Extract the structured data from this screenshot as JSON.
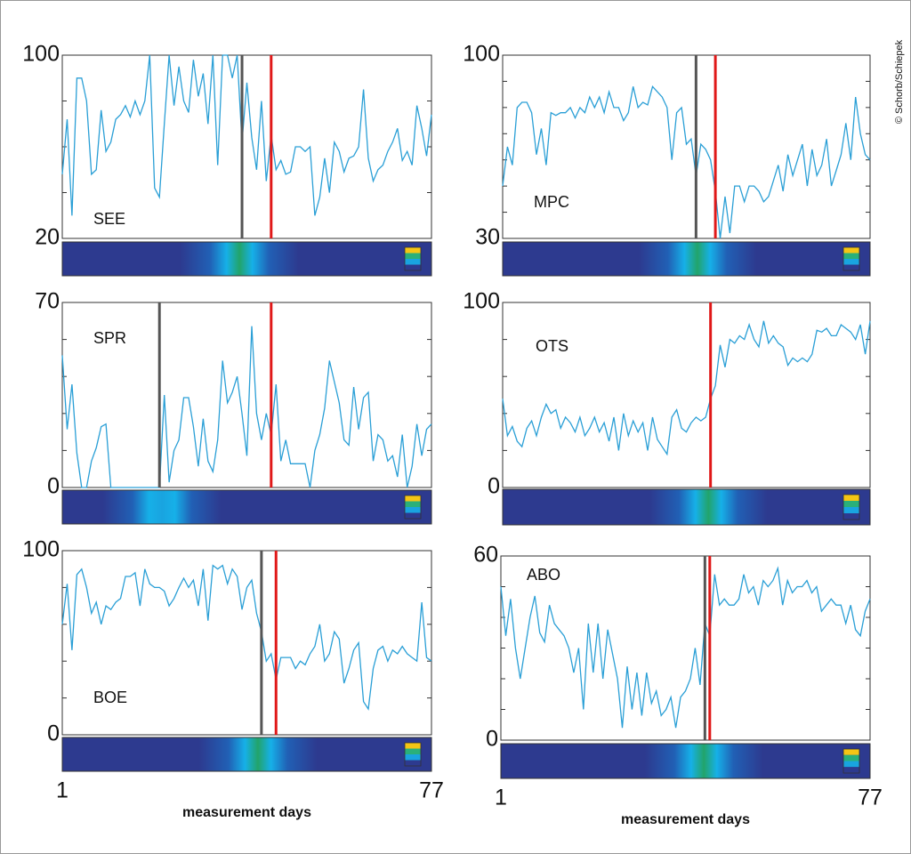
{
  "credit": "© Schorb/Schiepek",
  "chart_data": [
    {
      "type": "line",
      "label": "SEE",
      "color": "#2a9fd6",
      "ylim": [
        20,
        100
      ],
      "yticks": [
        20,
        100
      ],
      "yminor": [
        40,
        60,
        80
      ],
      "xlim": [
        1,
        77
      ],
      "x": [
        1,
        2,
        3,
        4,
        5,
        6,
        7,
        8,
        9,
        10,
        11,
        12,
        13,
        14,
        15,
        16,
        17,
        18,
        19,
        20,
        21,
        22,
        23,
        24,
        25,
        26,
        27,
        28,
        29,
        30,
        31,
        32,
        33,
        34,
        35,
        36,
        37,
        38,
        39,
        40,
        41,
        42,
        43,
        44,
        45,
        46,
        47,
        48,
        49,
        50,
        51,
        52,
        53,
        54,
        55,
        56,
        57,
        58,
        59,
        60,
        61,
        62,
        63,
        64,
        65,
        66,
        67,
        68,
        69,
        70,
        71,
        72,
        73,
        74,
        75,
        76,
        77
      ],
      "values": [
        48,
        72,
        30,
        90,
        90,
        80,
        48,
        50,
        76,
        58,
        62,
        72,
        74,
        78,
        73,
        80,
        74,
        80,
        100,
        42,
        38,
        70,
        100,
        78,
        95,
        80,
        75,
        98,
        82,
        92,
        70,
        100,
        52,
        100,
        100,
        90,
        100,
        62,
        88,
        64,
        50,
        80,
        45,
        65,
        50,
        54,
        48,
        49,
        60,
        60,
        58,
        60,
        30,
        38,
        55,
        40,
        62,
        58,
        49,
        55,
        56,
        60,
        85,
        55,
        45,
        50,
        52,
        58,
        62,
        68,
        54,
        58,
        52,
        78,
        68,
        56,
        74
      ],
      "markers": [
        {
          "x": 38,
          "color": "#555555"
        },
        {
          "x": 44,
          "color": "#e01818"
        }
      ]
    },
    {
      "type": "line",
      "label": "MPC",
      "color": "#2a9fd6",
      "ylim": [
        30,
        100
      ],
      "yticks": [
        30,
        100
      ],
      "yminor": [
        40,
        50,
        60,
        70,
        80,
        90
      ],
      "xlim": [
        1,
        77
      ],
      "x": [
        1,
        2,
        3,
        4,
        5,
        6,
        7,
        8,
        9,
        10,
        11,
        12,
        13,
        14,
        15,
        16,
        17,
        18,
        19,
        20,
        21,
        22,
        23,
        24,
        25,
        26,
        27,
        28,
        29,
        30,
        31,
        32,
        33,
        34,
        35,
        36,
        37,
        38,
        39,
        40,
        41,
        42,
        43,
        44,
        45,
        46,
        47,
        48,
        49,
        50,
        51,
        52,
        53,
        54,
        55,
        56,
        57,
        58,
        59,
        60,
        61,
        62,
        63,
        64,
        65,
        66,
        67,
        68,
        69,
        70,
        71,
        72,
        73,
        74,
        75,
        76,
        77
      ],
      "values": [
        50,
        65,
        58,
        80,
        82,
        82,
        78,
        62,
        72,
        58,
        78,
        77,
        78,
        78,
        80,
        76,
        80,
        78,
        84,
        80,
        84,
        78,
        86,
        80,
        80,
        75,
        78,
        88,
        80,
        82,
        81,
        88,
        86,
        84,
        80,
        60,
        78,
        80,
        66,
        68,
        54,
        66,
        64,
        60,
        48,
        30,
        46,
        32,
        50,
        50,
        44,
        50,
        50,
        48,
        44,
        46,
        52,
        58,
        48,
        62,
        54,
        60,
        66,
        50,
        64,
        54,
        58,
        68,
        50,
        56,
        62,
        74,
        60,
        84,
        70,
        62,
        60
      ],
      "markers": [
        {
          "x": 41,
          "color": "#555555"
        },
        {
          "x": 45,
          "color": "#e01818"
        }
      ]
    },
    {
      "type": "line",
      "label": "SPR",
      "color": "#2a9fd6",
      "ylim": [
        0,
        70
      ],
      "yticks": [
        0,
        70
      ],
      "yminor": [
        14,
        28,
        42,
        56
      ],
      "xlim": [
        1,
        77
      ],
      "x": [
        1,
        2,
        3,
        4,
        5,
        6,
        7,
        8,
        9,
        10,
        11,
        12,
        13,
        14,
        15,
        16,
        17,
        18,
        19,
        20,
        21,
        22,
        23,
        24,
        25,
        26,
        27,
        28,
        29,
        30,
        31,
        32,
        33,
        34,
        35,
        36,
        37,
        38,
        39,
        40,
        41,
        42,
        43,
        44,
        45,
        46,
        47,
        48,
        49,
        50,
        51,
        52,
        53,
        54,
        55,
        56,
        57,
        58,
        59,
        60,
        61,
        62,
        63,
        64,
        65,
        66,
        67,
        68,
        69,
        70,
        71,
        72,
        73,
        74,
        75,
        76,
        77
      ],
      "values": [
        50,
        22,
        39,
        13,
        0,
        0,
        10,
        15,
        23,
        24,
        0,
        0,
        0,
        0,
        0,
        0,
        0,
        0,
        0,
        0,
        0,
        35,
        2,
        14,
        18,
        34,
        34,
        23,
        8,
        26,
        10,
        6,
        18,
        48,
        32,
        36,
        42,
        28,
        12,
        61,
        28,
        18,
        28,
        20,
        39,
        10,
        18,
        9,
        9,
        9,
        9,
        0,
        14,
        20,
        30,
        48,
        40,
        32,
        18,
        16,
        38,
        22,
        34,
        36,
        10,
        20,
        18,
        10,
        12,
        4,
        20,
        0,
        8,
        24,
        12,
        22,
        24
      ],
      "markers": [
        {
          "x": 21,
          "color": "#555555"
        },
        {
          "x": 44,
          "color": "#e01818"
        }
      ]
    },
    {
      "type": "line",
      "label": "OTS",
      "color": "#2a9fd6",
      "ylim": [
        0,
        100
      ],
      "yticks": [
        0,
        100
      ],
      "yminor": [
        20,
        40,
        60,
        80
      ],
      "xlim": [
        1,
        77
      ],
      "x": [
        1,
        2,
        3,
        4,
        5,
        6,
        7,
        8,
        9,
        10,
        11,
        12,
        13,
        14,
        15,
        16,
        17,
        18,
        19,
        20,
        21,
        22,
        23,
        24,
        25,
        26,
        27,
        28,
        29,
        30,
        31,
        32,
        33,
        34,
        35,
        36,
        37,
        38,
        39,
        40,
        41,
        42,
        43,
        44,
        45,
        46,
        47,
        48,
        49,
        50,
        51,
        52,
        53,
        54,
        55,
        56,
        57,
        58,
        59,
        60,
        61,
        62,
        63,
        64,
        65,
        66,
        67,
        68,
        69,
        70,
        71,
        72,
        73,
        74,
        75,
        76,
        77
      ],
      "values": [
        48,
        28,
        33,
        25,
        22,
        32,
        36,
        28,
        38,
        45,
        40,
        42,
        32,
        38,
        35,
        30,
        38,
        28,
        32,
        38,
        30,
        35,
        25,
        38,
        20,
        40,
        28,
        36,
        30,
        35,
        20,
        38,
        26,
        22,
        18,
        38,
        42,
        32,
        30,
        35,
        38,
        36,
        38,
        48,
        55,
        77,
        65,
        80,
        78,
        82,
        80,
        88,
        80,
        76,
        90,
        78,
        82,
        78,
        76,
        66,
        70,
        68,
        70,
        68,
        72,
        85,
        84,
        86,
        82,
        82,
        88,
        86,
        84,
        80,
        88,
        72,
        90
      ],
      "markers": [
        {
          "x": 44,
          "color": "#e01818"
        }
      ]
    },
    {
      "type": "line",
      "label": "BOE",
      "color": "#2a9fd6",
      "ylim": [
        0,
        100
      ],
      "yticks": [
        0,
        100
      ],
      "yminor": [
        20,
        40,
        60,
        80
      ],
      "xlim": [
        1,
        77
      ],
      "xticks": [
        1,
        77
      ],
      "xlabel": "measurement days",
      "x": [
        1,
        2,
        3,
        4,
        5,
        6,
        7,
        8,
        9,
        10,
        11,
        12,
        13,
        14,
        15,
        16,
        17,
        18,
        19,
        20,
        21,
        22,
        23,
        24,
        25,
        26,
        27,
        28,
        29,
        30,
        31,
        32,
        33,
        34,
        35,
        36,
        37,
        38,
        39,
        40,
        41,
        42,
        43,
        44,
        45,
        46,
        47,
        48,
        49,
        50,
        51,
        52,
        53,
        54,
        55,
        56,
        57,
        58,
        59,
        60,
        61,
        62,
        63,
        64,
        65,
        66,
        67,
        68,
        69,
        70,
        71,
        72,
        73,
        74,
        75,
        76,
        77
      ],
      "values": [
        60,
        82,
        46,
        87,
        90,
        80,
        66,
        72,
        60,
        70,
        68,
        72,
        74,
        86,
        86,
        88,
        70,
        90,
        82,
        80,
        80,
        78,
        70,
        74,
        80,
        85,
        80,
        84,
        70,
        90,
        62,
        92,
        90,
        92,
        82,
        90,
        86,
        68,
        80,
        84,
        66,
        56,
        40,
        44,
        30,
        42,
        42,
        42,
        36,
        40,
        38,
        44,
        48,
        60,
        40,
        44,
        56,
        52,
        28,
        36,
        46,
        50,
        18,
        14,
        36,
        46,
        48,
        40,
        46,
        44,
        48,
        44,
        42,
        40,
        72,
        42,
        40
      ],
      "markers": [
        {
          "x": 42,
          "color": "#555555"
        },
        {
          "x": 45,
          "color": "#e01818"
        }
      ]
    },
    {
      "type": "line",
      "label": "ABO",
      "color": "#2a9fd6",
      "ylim": [
        0,
        60
      ],
      "yticks": [
        0,
        60
      ],
      "yminor": [
        10,
        20,
        30,
        40,
        50
      ],
      "xlim": [
        1,
        77
      ],
      "xticks": [
        1,
        77
      ],
      "xlabel": "measurement days",
      "x": [
        1,
        2,
        3,
        4,
        5,
        6,
        7,
        8,
        9,
        10,
        11,
        12,
        13,
        14,
        15,
        16,
        17,
        18,
        19,
        20,
        21,
        22,
        23,
        24,
        25,
        26,
        27,
        28,
        29,
        30,
        31,
        32,
        33,
        34,
        35,
        36,
        37,
        38,
        39,
        40,
        41,
        42,
        43,
        44,
        45,
        46,
        47,
        48,
        49,
        50,
        51,
        52,
        53,
        54,
        55,
        56,
        57,
        58,
        59,
        60,
        61,
        62,
        63,
        64,
        65,
        66,
        67,
        68,
        69,
        70,
        71,
        72,
        73,
        74,
        75,
        76,
        77
      ],
      "values": [
        50,
        34,
        46,
        30,
        20,
        30,
        40,
        47,
        35,
        32,
        44,
        38,
        36,
        34,
        30,
        22,
        30,
        10,
        38,
        22,
        38,
        20,
        36,
        28,
        20,
        4,
        24,
        10,
        22,
        8,
        22,
        12,
        16,
        8,
        10,
        14,
        4,
        14,
        16,
        20,
        30,
        18,
        38,
        34,
        54,
        44,
        46,
        44,
        44,
        46,
        54,
        48,
        50,
        44,
        52,
        50,
        52,
        56,
        44,
        52,
        48,
        50,
        50,
        52,
        48,
        50,
        42,
        44,
        46,
        44,
        44,
        38,
        44,
        36,
        34,
        42,
        46
      ],
      "markers": [
        {
          "x": 43,
          "color": "#555555"
        },
        {
          "x": 44,
          "color": "#e01818"
        }
      ]
    }
  ]
}
